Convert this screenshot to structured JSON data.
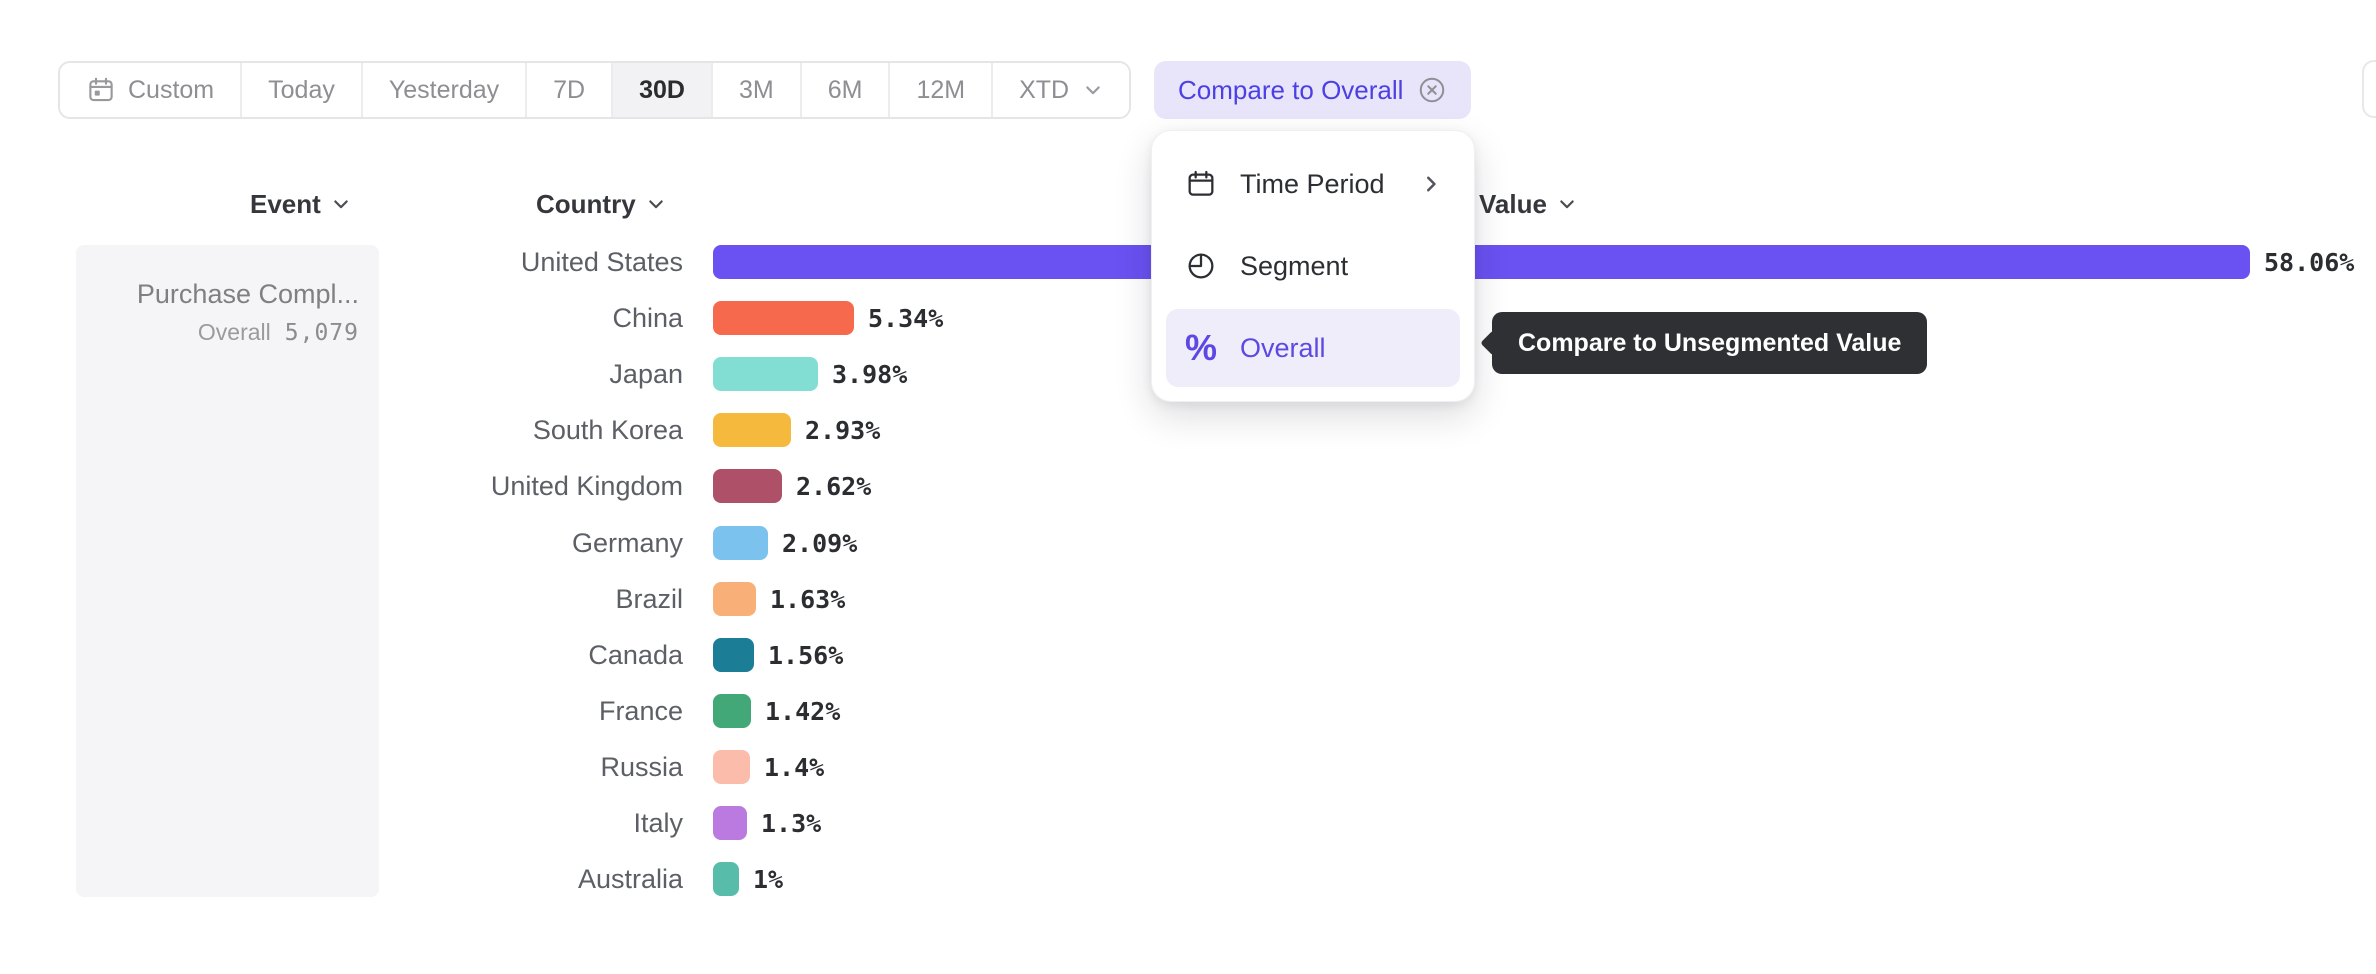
{
  "toolbar": {
    "presets": [
      {
        "label": "Custom",
        "icon": "calendar",
        "active": false
      },
      {
        "label": "Today",
        "active": false
      },
      {
        "label": "Yesterday",
        "active": false
      },
      {
        "label": "7D",
        "active": false
      },
      {
        "label": "30D",
        "active": true
      },
      {
        "label": "3M",
        "active": false
      },
      {
        "label": "6M",
        "active": false
      },
      {
        "label": "12M",
        "active": false
      },
      {
        "label": "XTD",
        "chevron": true,
        "active": false
      }
    ],
    "compare_chip_label": "Compare to Overall"
  },
  "menu": {
    "items": [
      {
        "label": "Time Period",
        "icon": "calendar",
        "has_submenu": true,
        "selected": false
      },
      {
        "label": "Segment",
        "icon": "segment",
        "has_submenu": false,
        "selected": false
      },
      {
        "label": "Overall",
        "icon": "percent",
        "has_submenu": false,
        "selected": true
      }
    ]
  },
  "tooltip": {
    "text": "Compare to Unsegmented Value"
  },
  "table": {
    "headers": {
      "event": "Event",
      "country": "Country",
      "value": "Value"
    },
    "event_card": {
      "name": "Purchase Compl...",
      "overall_label": "Overall",
      "overall_value": "5,079"
    }
  },
  "chart_data": {
    "type": "bar",
    "orientation": "horizontal",
    "title": "",
    "xlabel": "Value",
    "ylabel": "Country",
    "series_name": "Purchase Compl...",
    "categories": [
      "United States",
      "China",
      "Japan",
      "South Korea",
      "United Kingdom",
      "Germany",
      "Brazil",
      "Canada",
      "France",
      "Russia",
      "Italy",
      "Australia"
    ],
    "values": [
      58.06,
      5.34,
      3.98,
      2.93,
      2.62,
      2.09,
      1.63,
      1.56,
      1.42,
      1.4,
      1.3,
      1
    ],
    "labels": [
      "58.06%",
      "5.34%",
      "3.98%",
      "2.93%",
      "2.62%",
      "2.09%",
      "1.63%",
      "1.56%",
      "1.42%",
      "1.4%",
      "1.3%",
      "1%"
    ],
    "colors": [
      "#6A51F2",
      "#F6694C",
      "#82DED3",
      "#F5B93D",
      "#AE5168",
      "#7CC2EF",
      "#F9B078",
      "#1C7D97",
      "#42A878",
      "#FCBCAB",
      "#BA7AE0",
      "#58BCAB"
    ],
    "xlim": [
      0,
      60
    ],
    "grid": false,
    "legend": false
  },
  "colors": {
    "accent": "#5B49E2",
    "chip_bg": "#E8E5FB",
    "menu_highlight": "#F0EDFB",
    "tooltip_bg": "#2E3034",
    "panel_bg": "#F5F5F7",
    "active_preset_bg": "#F2F2F4"
  }
}
